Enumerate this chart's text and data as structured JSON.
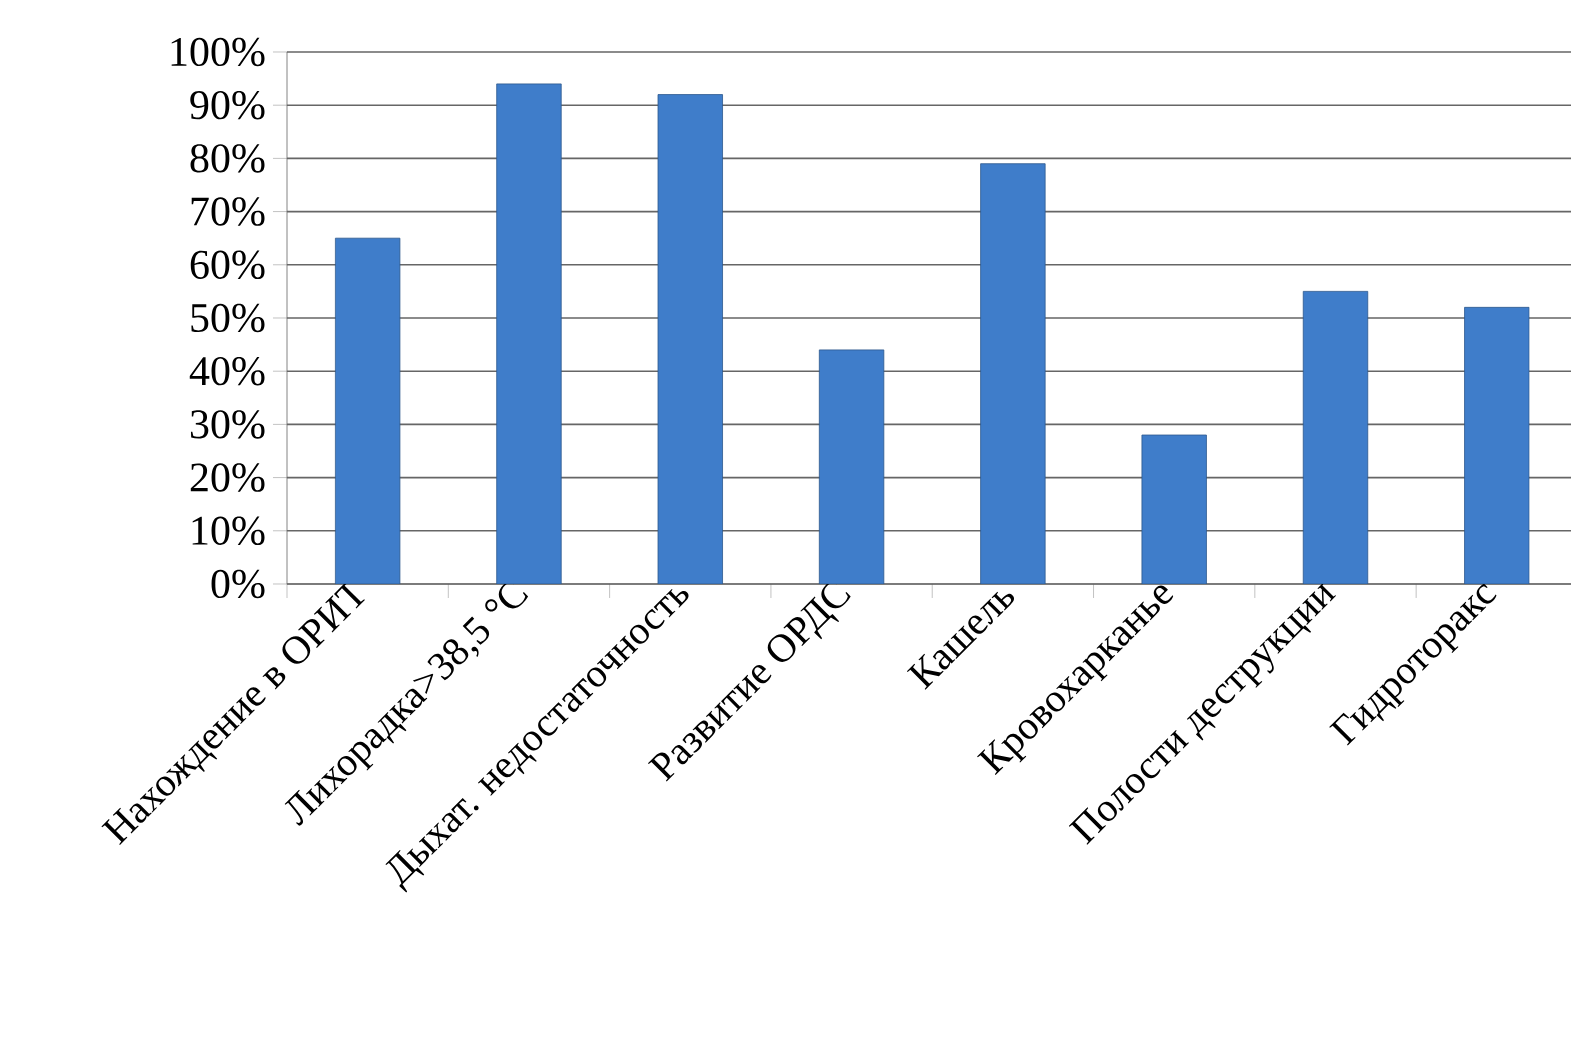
{
  "chart_data": {
    "type": "bar",
    "categories": [
      "Нахождение в ОРИТ",
      "Лихорадка>38,5 °С",
      "Дыхат. недостаточность",
      "Развитие ОРДС",
      "Кашель",
      "Кровохарканье",
      "Полости деструкции",
      "Гидроторакс"
    ],
    "values": [
      65,
      94,
      92,
      44,
      79,
      28,
      55,
      52
    ],
    "color": "#3f7dca",
    "ylim": [
      0,
      100
    ],
    "yticks": [
      {
        "value": 0,
        "label": "0%"
      },
      {
        "value": 10,
        "label": "10%"
      },
      {
        "value": 20,
        "label": "20%"
      },
      {
        "value": 30,
        "label": "30%"
      },
      {
        "value": 40,
        "label": "40%"
      },
      {
        "value": 50,
        "label": "50%"
      },
      {
        "value": 60,
        "label": "60%"
      },
      {
        "value": 70,
        "label": "70%"
      },
      {
        "value": 80,
        "label": "80%"
      },
      {
        "value": 90,
        "label": "90%"
      },
      {
        "value": 100,
        "label": "100%"
      }
    ],
    "grid": "y"
  }
}
